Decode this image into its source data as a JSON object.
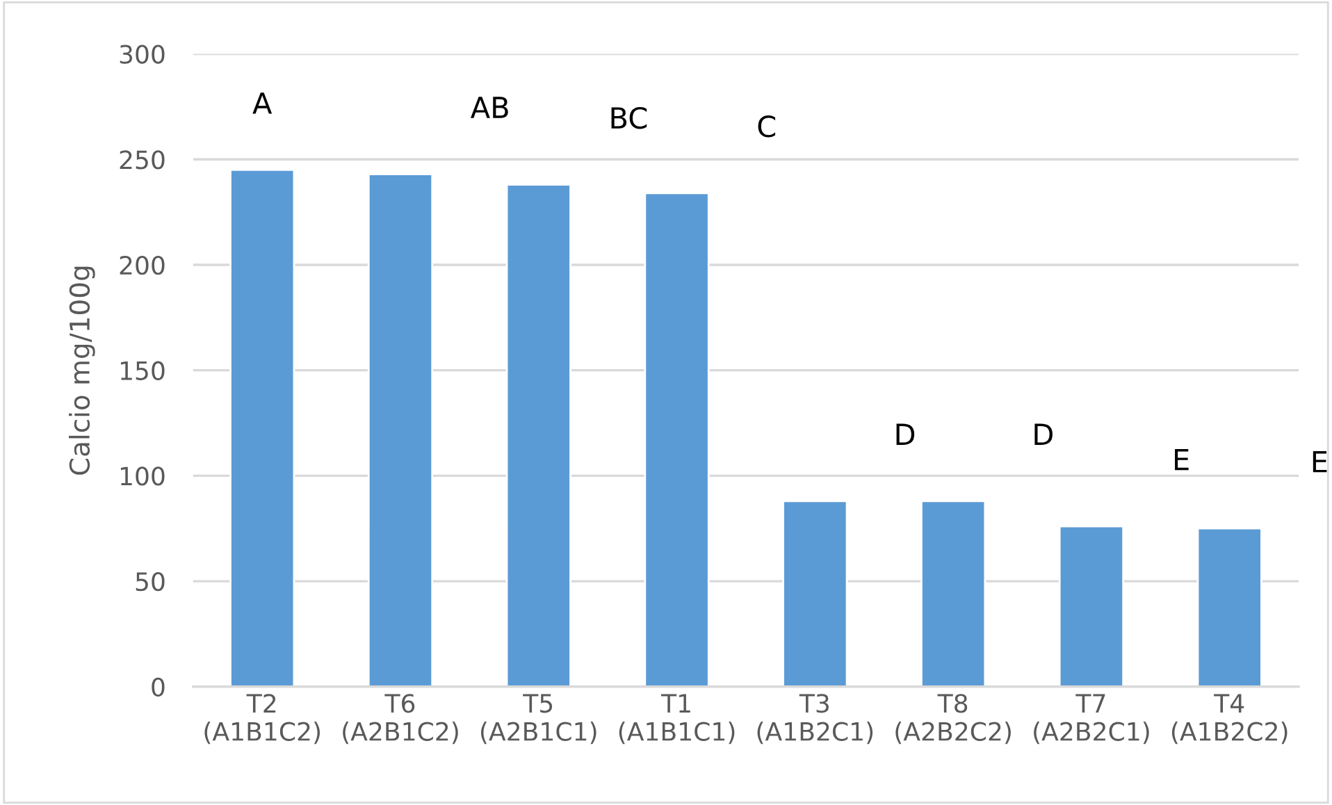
{
  "chart_data": {
    "type": "bar",
    "ylabel": "Calcio mg/100g",
    "categories": [
      "T2\n(A1B1C2)",
      "T6\n(A2B1C2)",
      "T5\n(A2B1C1)",
      "T1\n(A1B1C1)",
      "T3\n(A1B2C1)",
      "T8\n(A2B2C2)",
      "T7\n(A2B2C1)",
      "T4\n(A1B2C2)"
    ],
    "values": [
      245,
      243,
      238,
      234,
      88,
      88,
      76,
      75
    ],
    "color": "#5b9bd5",
    "ylim": [
      0,
      300
    ],
    "yticks": [
      0,
      50,
      100,
      150,
      200,
      250,
      300
    ],
    "grid": "y",
    "annotations": [
      "A",
      "AB",
      "BC",
      "C",
      "D",
      "D",
      "E",
      "E"
    ]
  }
}
